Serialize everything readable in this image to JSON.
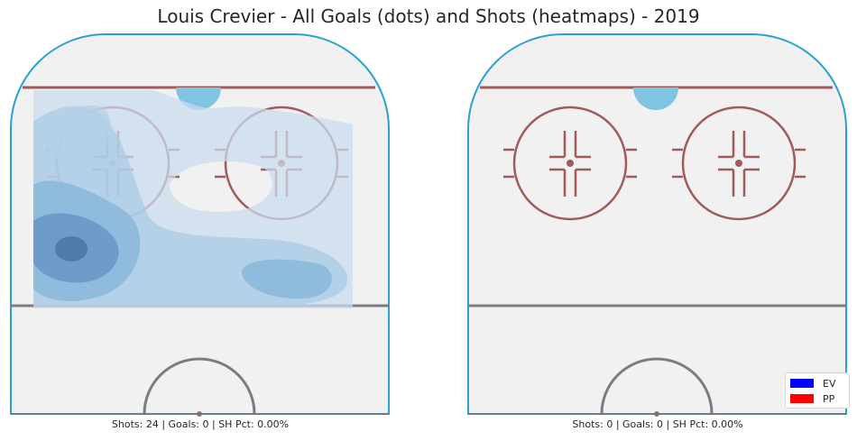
{
  "figure": {
    "title": "Louis Crevier - All Goals (dots) and Shots (heatmaps) - 2019"
  },
  "panels": [
    {
      "caption": "Shots: 24 | Goals: 0 | SH Pct: 0.00%"
    },
    {
      "caption": "Shots: 0 | Goals: 0 | SH Pct: 0.00%"
    }
  ],
  "legend": {
    "items": [
      {
        "label": "EV",
        "color": "#0000ff"
      },
      {
        "label": "PP",
        "color": "#ff0000"
      }
    ]
  },
  "colors": {
    "ice": "#f1f1f1",
    "boards": "#2aa1d1",
    "red_line": "#a05a5a",
    "blue_line": "#7c7c7c",
    "crease": "#7fc4e1",
    "heat_levels": [
      "#d4e3f1",
      "#b6d3e8",
      "#8cb8db",
      "#6a9dcd",
      "#4f80b6"
    ]
  },
  "chart_data": [
    {
      "type": "heatmap",
      "title": "Louis Crevier - All Goals (dots) and Shots (heatmaps) - 2019",
      "panel": "left",
      "caption": "Shots: 24 | Goals: 0 | SH Pct: 0.00%",
      "shots": 24,
      "goals": 0,
      "sh_pct": "0.00%",
      "density_peaks": [
        {
          "area": "left point / wide of left circle",
          "relative_density": 1.0
        },
        {
          "area": "low slot left of right circle",
          "relative_density": 0.55
        },
        {
          "area": "top-left of left circle",
          "relative_density": 0.4
        }
      ],
      "goal_dots": []
    },
    {
      "type": "heatmap",
      "panel": "right",
      "caption": "Shots: 0 | Goals: 0 | SH Pct: 0.00%",
      "shots": 0,
      "goals": 0,
      "sh_pct": "0.00%",
      "goal_dots": [],
      "legend": [
        "EV",
        "PP"
      ]
    }
  ]
}
